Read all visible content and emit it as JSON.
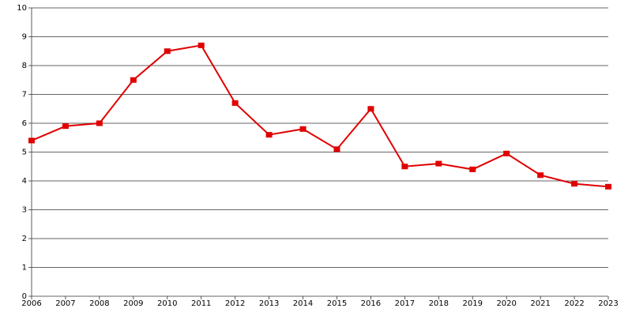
{
  "chart_data": {
    "type": "line",
    "x": [
      2006,
      2007,
      2008,
      2009,
      2010,
      2011,
      2012,
      2013,
      2014,
      2015,
      2016,
      2017,
      2018,
      2019,
      2020,
      2021,
      2022,
      2023
    ],
    "series": [
      {
        "color": "#e00000",
        "values": [
          5.4,
          5.9,
          6.0,
          7.5,
          8.5,
          8.7,
          6.7,
          5.6,
          5.8,
          5.1,
          6.5,
          4.5,
          4.6,
          4.4,
          4.95,
          4.2,
          3.9,
          3.8
        ]
      }
    ],
    "xlim": [
      2006,
      2023
    ],
    "xticks": [
      2006,
      2007,
      2008,
      2009,
      2010,
      2011,
      2012,
      2013,
      2014,
      2015,
      2016,
      2017,
      2018,
      2019,
      2020,
      2021,
      2022,
      2023
    ],
    "ylim": [
      0,
      10
    ],
    "yticks": [
      0,
      1,
      2,
      3,
      4,
      5,
      6,
      7,
      8,
      9,
      10
    ],
    "grid": true
  }
}
